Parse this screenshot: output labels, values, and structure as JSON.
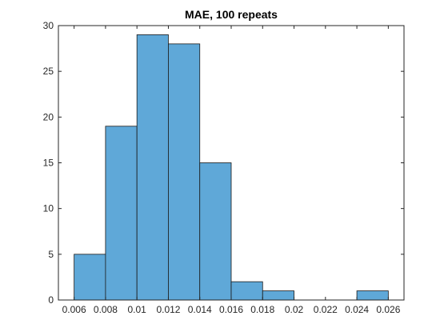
{
  "chart_data": {
    "type": "bar",
    "title": "MAE, 100 repeats",
    "xlabel": "",
    "ylabel": "",
    "bin_edges": [
      0.006,
      0.008,
      0.01,
      0.012,
      0.014,
      0.016,
      0.018,
      0.02,
      0.022,
      0.024,
      0.026
    ],
    "values": [
      5,
      19,
      29,
      28,
      15,
      2,
      1,
      0,
      0,
      1
    ],
    "xlim": [
      0.005,
      0.027
    ],
    "ylim": [
      0,
      30
    ],
    "xticks": [
      "0.006",
      "0.008",
      "0.01",
      "0.012",
      "0.014",
      "0.016",
      "0.018",
      "0.02",
      "0.022",
      "0.024",
      "0.026"
    ],
    "yticks": [
      "0",
      "5",
      "10",
      "15",
      "20",
      "25",
      "30"
    ],
    "grid": false,
    "bar_color": "#5fa8d8",
    "edge_color": "#1a1a1a",
    "axis_color": "#262626"
  }
}
